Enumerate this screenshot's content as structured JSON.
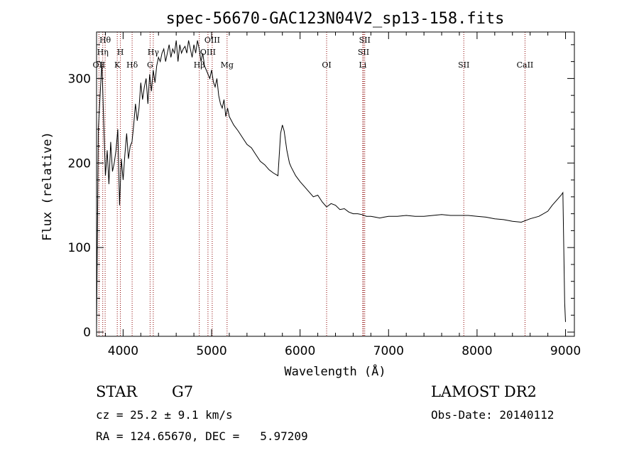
{
  "chart_data": {
    "type": "line",
    "title": "spec-56670-GAC123N04V2_sp13-158.fits",
    "xlabel": "Wavelength (Å)",
    "ylabel": "Flux (relative)",
    "xlim": [
      3700,
      9100
    ],
    "ylim": [
      -5,
      355
    ],
    "x_ticks": [
      4000,
      5000,
      6000,
      7000,
      8000,
      9000
    ],
    "y_ticks": [
      0,
      100,
      200,
      300
    ],
    "grid": false,
    "series": [
      {
        "x": [
          3700,
          3720,
          3740,
          3760,
          3780,
          3800,
          3820,
          3840,
          3860,
          3880,
          3900,
          3920,
          3940,
          3960,
          3980,
          4000,
          4020,
          4040,
          4060,
          4080,
          4100,
          4120,
          4140,
          4160,
          4180,
          4200,
          4220,
          4240,
          4260,
          4280,
          4300,
          4320,
          4340,
          4360,
          4380,
          4400,
          4420,
          4440,
          4460,
          4480,
          4500,
          4520,
          4540,
          4560,
          4580,
          4600,
          4620,
          4640,
          4660,
          4680,
          4700,
          4720,
          4740,
          4760,
          4780,
          4800,
          4820,
          4840,
          4860,
          4880,
          4900,
          4920,
          4940,
          4960,
          4980,
          5000,
          5020,
          5040,
          5060,
          5080,
          5100,
          5120,
          5140,
          5160,
          5180,
          5200,
          5250,
          5300,
          5350,
          5400,
          5450,
          5500,
          5550,
          5600,
          5650,
          5700,
          5750,
          5780,
          5800,
          5820,
          5850,
          5880,
          5900,
          5950,
          6000,
          6050,
          6100,
          6150,
          6200,
          6250,
          6300,
          6350,
          6400,
          6450,
          6500,
          6550,
          6600,
          6650,
          6700,
          6750,
          6800,
          6850,
          6900,
          6950,
          7000,
          7100,
          7200,
          7300,
          7400,
          7500,
          7600,
          7700,
          7800,
          7900,
          8000,
          8100,
          8200,
          8300,
          8400,
          8500,
          8600,
          8700,
          8800,
          8850,
          8900,
          8950,
          8970,
          8990,
          9000
        ],
        "values": [
          5,
          240,
          280,
          320,
          250,
          185,
          215,
          175,
          225,
          190,
          200,
          215,
          240,
          150,
          205,
          180,
          210,
          235,
          205,
          220,
          225,
          245,
          270,
          250,
          265,
          295,
          275,
          290,
          300,
          270,
          305,
          285,
          310,
          295,
          315,
          325,
          320,
          330,
          335,
          320,
          330,
          340,
          325,
          335,
          330,
          345,
          320,
          340,
          330,
          335,
          338,
          330,
          345,
          335,
          325,
          340,
          330,
          345,
          335,
          320,
          330,
          315,
          310,
          305,
          300,
          310,
          296,
          290,
          300,
          280,
          270,
          265,
          275,
          255,
          265,
          255,
          245,
          238,
          230,
          222,
          218,
          210,
          202,
          198,
          192,
          188,
          185,
          235,
          245,
          238,
          215,
          200,
          195,
          185,
          178,
          172,
          166,
          160,
          162,
          154,
          148,
          152,
          150,
          145,
          146,
          142,
          140,
          140,
          139,
          137,
          137,
          136,
          135,
          136,
          137,
          137,
          138,
          137,
          137,
          138,
          139,
          138,
          138,
          138,
          137,
          136,
          134,
          133,
          131,
          130,
          134,
          137,
          143,
          150,
          156,
          162,
          165,
          35,
          12
        ]
      }
    ],
    "annotations": {
      "lines": [
        {
          "wavelength": 3727,
          "label": "OII"
        },
        {
          "wavelength": 3770,
          "label": "Hη"
        },
        {
          "wavelength": 3797,
          "label": "Hθ"
        },
        {
          "wavelength": 3934,
          "label": "K"
        },
        {
          "wavelength": 3969,
          "label": "H"
        },
        {
          "wavelength": 4102,
          "label": "Hδ"
        },
        {
          "wavelength": 4305,
          "label": "G"
        },
        {
          "wavelength": 4341,
          "label": "Hγ"
        },
        {
          "wavelength": 4861,
          "label": "Hβ"
        },
        {
          "wavelength": 4959,
          "label": "OIII"
        },
        {
          "wavelength": 5007,
          "label": "OIII"
        },
        {
          "wavelength": 5175,
          "label": "Mg"
        },
        {
          "wavelength": 6300,
          "label": "OI"
        },
        {
          "wavelength": 6708,
          "label": "Li"
        },
        {
          "wavelength": 6717,
          "label": "SII"
        },
        {
          "wavelength": 6731,
          "label": "SII"
        },
        {
          "wavelength": 7850,
          "label": "SII"
        },
        {
          "wavelength": 8542,
          "label": "CaII"
        }
      ]
    }
  },
  "info": {
    "object_class": "STAR",
    "subclass": "G7",
    "release": "LAMOST DR2",
    "cz": "cz = 25.2 ± 9.1 km/s",
    "obs_date": "Obs-Date: 20140112",
    "coords": "RA = 124.65670, DEC =   5.97209"
  },
  "colors": {
    "spectrum": "#000000",
    "line_markers": "#8b0000",
    "axes": "#000000",
    "background": "#ffffff"
  }
}
